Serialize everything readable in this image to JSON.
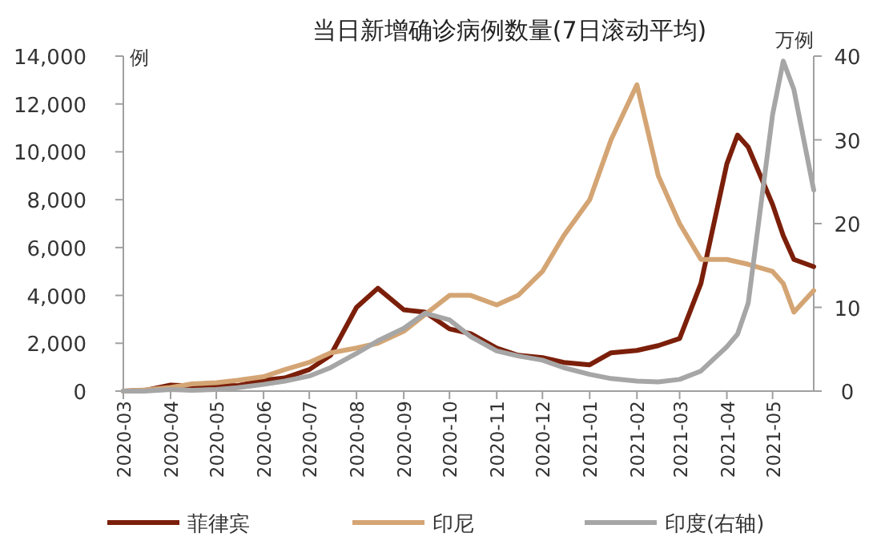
{
  "chart_data": {
    "type": "line",
    "title": "当日新增确诊病例数量(7日滚动平均)",
    "ylabel": "例",
    "y2label": "万例",
    "x": [
      "2020-03-01",
      "2020-03-15",
      "2020-04-01",
      "2020-04-15",
      "2020-05-01",
      "2020-05-15",
      "2020-06-01",
      "2020-06-15",
      "2020-07-01",
      "2020-07-15",
      "2020-08-01",
      "2020-08-15",
      "2020-09-01",
      "2020-09-15",
      "2020-10-01",
      "2020-10-15",
      "2020-11-01",
      "2020-11-15",
      "2020-12-01",
      "2020-12-15",
      "2021-01-01",
      "2021-01-15",
      "2021-02-01",
      "2021-02-15",
      "2021-03-01",
      "2021-03-15",
      "2021-04-01",
      "2021-04-08",
      "2021-04-15",
      "2021-05-01",
      "2021-05-08",
      "2021-05-15",
      "2021-05-28"
    ],
    "series": [
      {
        "name": "菲律宾",
        "color": "#7b1f0a",
        "values": [
          0,
          30,
          250,
          220,
          250,
          230,
          450,
          550,
          900,
          1500,
          3500,
          4300,
          3400,
          3300,
          2600,
          2400,
          1800,
          1500,
          1400,
          1200,
          1100,
          1600,
          1700,
          1900,
          2200,
          4500,
          9500,
          10700,
          10200,
          7800,
          6500,
          5500,
          5200
        ]
      },
      {
        "name": "印尼",
        "color": "#d4a574",
        "values": [
          0,
          50,
          150,
          300,
          350,
          450,
          600,
          900,
          1200,
          1600,
          1800,
          2000,
          2500,
          3200,
          4000,
          4000,
          3600,
          4000,
          5000,
          6500,
          8000,
          10500,
          12800,
          9000,
          7000,
          5500,
          5500,
          5400,
          5300,
          5000,
          4500,
          3300,
          4200
        ]
      },
      {
        "name": "印度(右轴)",
        "color": "#a6a6a6",
        "axis": "y2",
        "values": [
          0,
          0,
          0.2,
          0.1,
          0.2,
          0.4,
          0.8,
          1.2,
          1.8,
          2.8,
          4.5,
          6,
          7.5,
          9.3,
          8.5,
          6.5,
          4.8,
          4.2,
          3.7,
          2.8,
          2,
          1.5,
          1.2,
          1.1,
          1.4,
          2.4,
          5.3,
          6.8,
          10.5,
          33,
          39.4,
          36,
          24
        ]
      }
    ],
    "xlim": [
      "2020-03-01",
      "2021-05-28"
    ],
    "xticks": [
      "2020-03",
      "2020-04",
      "2020-05",
      "2020-06",
      "2020-07",
      "2020-08",
      "2020-09",
      "2020-10",
      "2020-11",
      "2020-12",
      "2021-01",
      "2021-02",
      "2021-03",
      "2021-04",
      "2021-05"
    ],
    "ylim": [
      0,
      14000
    ],
    "yticks": [
      {
        "value": 0,
        "label": "0"
      },
      {
        "value": 2000,
        "label": "2,000"
      },
      {
        "value": 4000,
        "label": "4,000"
      },
      {
        "value": 6000,
        "label": "6,000"
      },
      {
        "value": 8000,
        "label": "8,000"
      },
      {
        "value": 10000,
        "label": "10,000"
      },
      {
        "value": 12000,
        "label": "12,000"
      },
      {
        "value": 14000,
        "label": "14,000"
      }
    ],
    "y2lim": [
      0,
      40
    ],
    "y2ticks": [
      0,
      10,
      20,
      30,
      40
    ],
    "legend": "bottom",
    "grid": false,
    "marker": "none",
    "line_style": "solid"
  }
}
